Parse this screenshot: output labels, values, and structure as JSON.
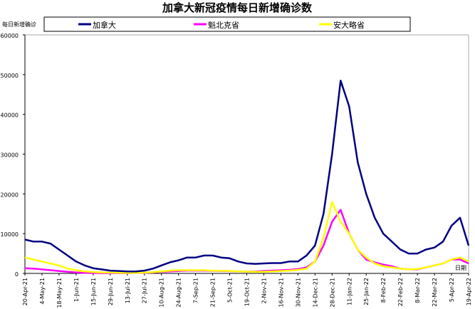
{
  "chart_data": {
    "type": "line",
    "title": "加拿大新冠疫情每日新增确诊数",
    "ylabel": "每日新增确诊",
    "xlabel": "日期",
    "ylim": [
      0,
      60000
    ],
    "yticks": [
      0,
      10000,
      20000,
      30000,
      40000,
      50000,
      60000
    ],
    "xlim": [
      "2021-04-20",
      "2022-04-19"
    ],
    "xtick_labels": [
      "20-Apr-21",
      "4-May-21",
      "18-May-21",
      "1-Jun-21",
      "15-Jun-21",
      "29-Jun-21",
      "13-Jul-21",
      "27-Jul-21",
      "10-Aug-21",
      "24-Aug-21",
      "7-Sep-21",
      "21-Sep-21",
      "5-Oct-21",
      "19-Oct-21",
      "2-Nov-21",
      "16-Nov-21",
      "30-Nov-21",
      "14-Dec-21",
      "28-Dec-21",
      "11-Jan-22",
      "25-Jan-22",
      "8-Feb-22",
      "22-Feb-22",
      "8-Mar-22",
      "22-Mar-22",
      "5-Apr-22",
      "19-Apr-22"
    ],
    "x": [
      "2021-04-20",
      "2021-04-27",
      "2021-05-04",
      "2021-05-11",
      "2021-05-18",
      "2021-05-25",
      "2021-06-01",
      "2021-06-08",
      "2021-06-15",
      "2021-06-22",
      "2021-06-29",
      "2021-07-06",
      "2021-07-13",
      "2021-07-20",
      "2021-07-27",
      "2021-08-03",
      "2021-08-10",
      "2021-08-17",
      "2021-08-24",
      "2021-08-31",
      "2021-09-07",
      "2021-09-14",
      "2021-09-21",
      "2021-09-28",
      "2021-10-05",
      "2021-10-12",
      "2021-10-19",
      "2021-10-26",
      "2021-11-02",
      "2021-11-09",
      "2021-11-16",
      "2021-11-23",
      "2021-11-30",
      "2021-12-07",
      "2021-12-14",
      "2021-12-21",
      "2021-12-28",
      "2022-01-04",
      "2022-01-11",
      "2022-01-18",
      "2022-01-25",
      "2022-02-01",
      "2022-02-08",
      "2022-02-15",
      "2022-02-22",
      "2022-03-01",
      "2022-03-08",
      "2022-03-15",
      "2022-03-22",
      "2022-03-29",
      "2022-04-05",
      "2022-04-12",
      "2022-04-19"
    ],
    "legend_placement": "top",
    "grid": false,
    "series": [
      {
        "name": "加拿大",
        "color": "#000080",
        "values": [
          8500,
          8000,
          8000,
          7500,
          6000,
          4500,
          3000,
          2000,
          1300,
          1000,
          700,
          600,
          500,
          500,
          700,
          1200,
          2000,
          2800,
          3300,
          4000,
          4000,
          4500,
          4500,
          4000,
          3800,
          3000,
          2500,
          2400,
          2500,
          2600,
          2600,
          3000,
          3000,
          4500,
          7000,
          15000,
          30000,
          48500,
          42000,
          28000,
          20000,
          14000,
          10000,
          8000,
          6000,
          5000,
          5000,
          6000,
          6500,
          8000,
          12000,
          14000,
          7000
        ]
      },
      {
        "name": "魁北克省",
        "color": "#FF00FF",
        "values": [
          1300,
          1200,
          1000,
          800,
          600,
          400,
          250,
          150,
          100,
          80,
          80,
          70,
          80,
          100,
          150,
          250,
          400,
          500,
          600,
          700,
          700,
          700,
          650,
          600,
          550,
          500,
          450,
          500,
          600,
          700,
          800,
          900,
          1100,
          1500,
          3000,
          7000,
          13000,
          16000,
          10000,
          6000,
          3500,
          2800,
          2200,
          1800,
          1200,
          1000,
          1000,
          1500,
          2000,
          2500,
          3500,
          3500,
          2500
        ]
      },
      {
        "name": "安大略省",
        "color": "#FFFF00",
        "values": [
          4000,
          3500,
          3000,
          2500,
          2000,
          1200,
          800,
          500,
          350,
          250,
          200,
          170,
          150,
          150,
          200,
          300,
          500,
          700,
          800,
          800,
          800,
          800,
          700,
          650,
          600,
          500,
          450,
          400,
          400,
          500,
          600,
          700,
          900,
          1200,
          3000,
          9000,
          18000,
          13000,
          10000,
          6000,
          4000,
          2500,
          1800,
          1500,
          1200,
          1000,
          1100,
          1500,
          2000,
          2500,
          3500,
          4000,
          3000
        ]
      }
    ]
  }
}
